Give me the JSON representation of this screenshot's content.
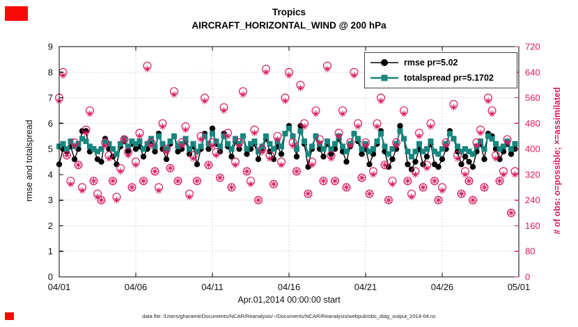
{
  "chart": {
    "title_line1": "Tropics",
    "title_line2": "AIRCRAFT_HORIZONTAL_WIND @ 200 hPa",
    "ylabel_left": "rmse and totalspread",
    "ylabel_right": "# of obs: o=possible; ×=assimilated",
    "xlabel": "Apr.01,2014 00:00:00 start",
    "footer": "data file: /Users/gharamti/Documents/NCAR/Reanalysis/~/Documents/NCAR/Reanalysis/webpub/obs_diag_output_2014-04.nc",
    "legend": [
      {
        "label": "rmse pr=5.02",
        "color": "#000000",
        "marker": "circle"
      },
      {
        "label": "totalspread pr=5.1702",
        "color": "#17867f",
        "marker": "square"
      }
    ]
  },
  "decorations": {
    "red_box_color": "#f80b07"
  },
  "chart_data": {
    "type": "line",
    "title": "Tropics — AIRCRAFT_HORIZONTAL_WIND @ 200 hPa",
    "x_step_days": 0.25,
    "x_range": [
      0,
      30
    ],
    "x_tick_days": [
      0,
      5,
      10,
      15,
      20,
      25,
      30
    ],
    "x_tick_labels": [
      "04/01",
      "04/06",
      "04/11",
      "04/16",
      "04/21",
      "04/26",
      "05/01"
    ],
    "ylim_left": [
      0,
      9
    ],
    "left_ticks": [
      0,
      1,
      2,
      3,
      4,
      5,
      6,
      7,
      8,
      9
    ],
    "ylim_right": [
      0,
      720
    ],
    "right_ticks": [
      0,
      80,
      160,
      240,
      320,
      400,
      480,
      560,
      640,
      720
    ],
    "grid": true,
    "legend_position": "top-right-inside",
    "colors": {
      "rmse": "#000000",
      "totalspread": "#17867f",
      "obs": "#d91a60"
    },
    "series": [
      {
        "name": "rmse",
        "axis": "left",
        "marker": "filled-circle",
        "mean_label": 5.02,
        "values": [
          4.4,
          5.0,
          4.9,
          5.1,
          4.6,
          5.0,
          5.7,
          5.7,
          4.9,
          5.0,
          4.6,
          4.5,
          5.4,
          5.0,
          4.7,
          4.4,
          5.1,
          5.3,
          4.9,
          5.2,
          5.0,
          5.1,
          4.7,
          5.0,
          5.3,
          4.9,
          5.6,
          5.0,
          4.6,
          5.2,
          5.5,
          4.9,
          5.0,
          5.3,
          4.8,
          5.1,
          4.4,
          5.0,
          5.6,
          5.0,
          5.8,
          5.2,
          4.9,
          5.6,
          5.1,
          4.7,
          5.3,
          5.0,
          5.5,
          4.8,
          5.0,
          5.2,
          4.6,
          5.0,
          5.4,
          4.9,
          4.6,
          5.1,
          4.8,
          5.6,
          5.9,
          5.5,
          4.7,
          5.9,
          5.2,
          4.3,
          5.0,
          5.5,
          5.0,
          4.7,
          5.2,
          4.8,
          5.0,
          5.4,
          4.9,
          4.5,
          5.1,
          5.6,
          5.3,
          4.8,
          5.0,
          4.4,
          4.8,
          5.2,
          5.7,
          4.9,
          4.3,
          4.6,
          5.0,
          5.9,
          5.4,
          4.4,
          4.2,
          4.5,
          5.0,
          4.4,
          4.7,
          5.2,
          4.4,
          4.3,
          4.6,
          5.0,
          5.7,
          5.4,
          4.9,
          4.4,
          4.7,
          4.5,
          4.3,
          4.9,
          5.2,
          4.6,
          5.6,
          5.5,
          5.0,
          4.6,
          4.9,
          5.2,
          4.8,
          5.0
        ]
      },
      {
        "name": "totalspread",
        "axis": "left",
        "marker": "filled-square",
        "mean_label": 5.1702,
        "values": [
          5.1,
          5.2,
          5.0,
          5.3,
          5.1,
          5.2,
          5.4,
          5.3,
          5.1,
          5.0,
          4.9,
          5.0,
          5.3,
          5.2,
          5.0,
          4.8,
          5.2,
          5.4,
          5.1,
          5.3,
          5.2,
          5.3,
          5.0,
          5.2,
          5.4,
          5.1,
          5.5,
          5.2,
          5.0,
          5.3,
          5.5,
          5.1,
          5.2,
          5.4,
          5.0,
          5.2,
          4.9,
          5.1,
          5.5,
          5.2,
          5.6,
          5.3,
          5.1,
          5.5,
          5.2,
          5.0,
          5.4,
          5.2,
          5.5,
          5.0,
          5.2,
          5.3,
          4.9,
          5.1,
          5.5,
          5.2,
          5.0,
          5.3,
          5.1,
          5.6,
          5.8,
          5.5,
          5.0,
          5.7,
          5.3,
          4.8,
          5.1,
          5.5,
          5.2,
          5.0,
          5.3,
          5.0,
          5.2,
          5.5,
          5.1,
          4.9,
          5.2,
          5.6,
          5.4,
          5.0,
          5.2,
          4.9,
          5.0,
          5.3,
          5.6,
          5.1,
          4.8,
          5.0,
          5.2,
          5.7,
          5.4,
          4.9,
          4.7,
          4.9,
          5.2,
          4.9,
          5.0,
          5.3,
          4.9,
          4.8,
          5.0,
          5.2,
          5.6,
          5.4,
          5.1,
          4.9,
          5.0,
          4.9,
          4.8,
          5.1,
          5.3,
          5.0,
          5.5,
          5.4,
          5.2,
          5.0,
          5.1,
          5.3,
          5.0,
          5.2
        ]
      },
      {
        "name": "obs_possible",
        "axis": "right",
        "marker": "open-circle",
        "values": [
          560,
          640,
          380,
          300,
          420,
          350,
          280,
          460,
          520,
          300,
          260,
          240,
          420,
          380,
          300,
          250,
          340,
          430,
          390,
          280,
          360,
          450,
          300,
          660,
          420,
          330,
          280,
          480,
          400,
          340,
          580,
          300,
          420,
          470,
          260,
          380,
          300,
          440,
          560,
          350,
          420,
          390,
          310,
          530,
          450,
          280,
          360,
          420,
          580,
          330,
          300,
          460,
          240,
          400,
          650,
          380,
          290,
          440,
          360,
          560,
          640,
          420,
          330,
          600,
          480,
          260,
          360,
          520,
          430,
          300,
          660,
          380,
          300,
          450,
          520,
          280,
          420,
          640,
          480,
          310,
          420,
          260,
          330,
          480,
          560,
          350,
          240,
          300,
          420,
          660,
          520,
          300,
          260,
          330,
          450,
          280,
          350,
          480,
          300,
          240,
          280,
          420,
          620,
          540,
          380,
          260,
          330,
          300,
          240,
          420,
          460,
          280,
          560,
          520,
          380,
          300,
          330,
          430,
          200,
          330
        ]
      },
      {
        "name": "obs_assimilated",
        "axis": "right",
        "marker": "asterisk",
        "values": [
          550,
          630,
          380,
          290,
          410,
          350,
          270,
          450,
          510,
          300,
          250,
          240,
          410,
          370,
          300,
          240,
          330,
          430,
          380,
          280,
          350,
          440,
          300,
          650,
          410,
          330,
          270,
          470,
          390,
          340,
          570,
          300,
          410,
          460,
          250,
          370,
          300,
          430,
          550,
          350,
          410,
          380,
          310,
          520,
          440,
          280,
          350,
          410,
          570,
          330,
          290,
          450,
          240,
          390,
          640,
          370,
          290,
          430,
          350,
          550,
          630,
          410,
          330,
          590,
          470,
          260,
          350,
          510,
          420,
          300,
          650,
          370,
          300,
          440,
          510,
          280,
          410,
          630,
          470,
          310,
          410,
          260,
          320,
          470,
          550,
          350,
          240,
          290,
          410,
          650,
          510,
          300,
          250,
          320,
          440,
          280,
          340,
          470,
          300,
          240,
          270,
          410,
          610,
          530,
          370,
          260,
          320,
          300,
          240,
          410,
          450,
          280,
          550,
          510,
          370,
          300,
          320,
          420,
          200,
          320
        ]
      }
    ]
  }
}
